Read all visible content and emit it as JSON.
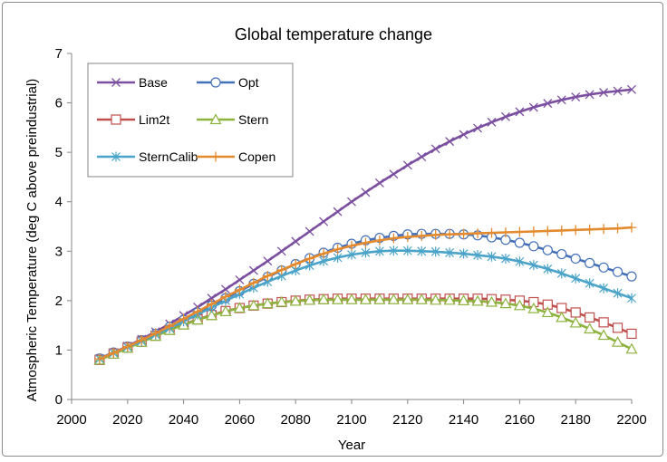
{
  "chart_data": {
    "type": "line",
    "title": "Global temperature change",
    "xlabel": "Year",
    "ylabel": "Atmospheric Temperature (deg C above preindustrial)",
    "xlim": [
      2000,
      2200
    ],
    "ylim": [
      0,
      7
    ],
    "xticks": [
      2000,
      2020,
      2040,
      2060,
      2080,
      2100,
      2120,
      2140,
      2160,
      2180,
      2200
    ],
    "yticks": [
      0,
      1,
      2,
      3,
      4,
      5,
      6,
      7
    ],
    "grid": false,
    "legend": "top-left",
    "x": [
      2010,
      2015,
      2020,
      2025,
      2030,
      2035,
      2040,
      2045,
      2050,
      2055,
      2060,
      2065,
      2070,
      2075,
      2080,
      2085,
      2090,
      2095,
      2100,
      2105,
      2110,
      2115,
      2120,
      2125,
      2130,
      2135,
      2140,
      2145,
      2150,
      2155,
      2160,
      2165,
      2170,
      2175,
      2180,
      2185,
      2190,
      2195,
      2200
    ],
    "series": [
      {
        "name": "Base",
        "color": "#7b4fa0",
        "marker": "x",
        "values": [
          0.83,
          0.95,
          1.08,
          1.22,
          1.37,
          1.53,
          1.7,
          1.87,
          2.05,
          2.23,
          2.42,
          2.61,
          2.8,
          3.0,
          3.2,
          3.4,
          3.6,
          3.8,
          4.0,
          4.19,
          4.38,
          4.56,
          4.74,
          4.91,
          5.07,
          5.22,
          5.36,
          5.49,
          5.61,
          5.72,
          5.82,
          5.91,
          5.99,
          6.06,
          6.12,
          6.17,
          6.21,
          6.24,
          6.27
        ]
      },
      {
        "name": "Opt",
        "color": "#4470b8",
        "marker": "circle",
        "values": [
          0.83,
          0.95,
          1.07,
          1.2,
          1.33,
          1.47,
          1.61,
          1.76,
          1.9,
          2.05,
          2.19,
          2.34,
          2.48,
          2.61,
          2.74,
          2.86,
          2.97,
          3.07,
          3.15,
          3.22,
          3.27,
          3.31,
          3.34,
          3.35,
          3.35,
          3.35,
          3.34,
          3.32,
          3.28,
          3.23,
          3.17,
          3.1,
          3.02,
          2.94,
          2.85,
          2.76,
          2.67,
          2.58,
          2.49
        ]
      },
      {
        "name": "Lim2t",
        "color": "#c0504d",
        "marker": "square",
        "values": [
          0.8,
          0.93,
          1.05,
          1.17,
          1.29,
          1.41,
          1.52,
          1.62,
          1.71,
          1.79,
          1.85,
          1.9,
          1.94,
          1.97,
          2.0,
          2.02,
          2.03,
          2.04,
          2.04,
          2.04,
          2.04,
          2.04,
          2.04,
          2.04,
          2.04,
          2.04,
          2.04,
          2.04,
          2.03,
          2.02,
          2.0,
          1.97,
          1.92,
          1.85,
          1.76,
          1.66,
          1.56,
          1.45,
          1.33
        ]
      },
      {
        "name": "Stern",
        "color": "#8db33e",
        "marker": "triangle",
        "values": [
          0.8,
          0.92,
          1.04,
          1.16,
          1.28,
          1.4,
          1.51,
          1.61,
          1.7,
          1.78,
          1.85,
          1.9,
          1.94,
          1.97,
          1.99,
          2.01,
          2.02,
          2.02,
          2.02,
          2.02,
          2.02,
          2.02,
          2.02,
          2.02,
          2.01,
          2.01,
          2.0,
          1.99,
          1.97,
          1.94,
          1.9,
          1.84,
          1.76,
          1.66,
          1.55,
          1.43,
          1.3,
          1.16,
          1.02
        ]
      },
      {
        "name": "SternCalib",
        "color": "#4aa3c8",
        "marker": "asterisk",
        "values": [
          0.82,
          0.94,
          1.06,
          1.18,
          1.31,
          1.44,
          1.58,
          1.72,
          1.86,
          2.0,
          2.13,
          2.26,
          2.38,
          2.5,
          2.61,
          2.71,
          2.8,
          2.87,
          2.93,
          2.97,
          3.0,
          3.01,
          3.01,
          3.0,
          2.99,
          2.97,
          2.95,
          2.92,
          2.89,
          2.85,
          2.79,
          2.72,
          2.64,
          2.55,
          2.45,
          2.35,
          2.25,
          2.15,
          2.05
        ]
      },
      {
        "name": "Copen",
        "color": "#e38a2e",
        "marker": "plus",
        "values": [
          0.82,
          0.94,
          1.07,
          1.2,
          1.34,
          1.48,
          1.63,
          1.78,
          1.93,
          2.08,
          2.22,
          2.36,
          2.5,
          2.62,
          2.74,
          2.85,
          2.95,
          3.04,
          3.11,
          3.17,
          3.22,
          3.26,
          3.29,
          3.31,
          3.33,
          3.34,
          3.35,
          3.36,
          3.37,
          3.38,
          3.39,
          3.4,
          3.41,
          3.42,
          3.43,
          3.44,
          3.45,
          3.46,
          3.48
        ]
      }
    ]
  }
}
